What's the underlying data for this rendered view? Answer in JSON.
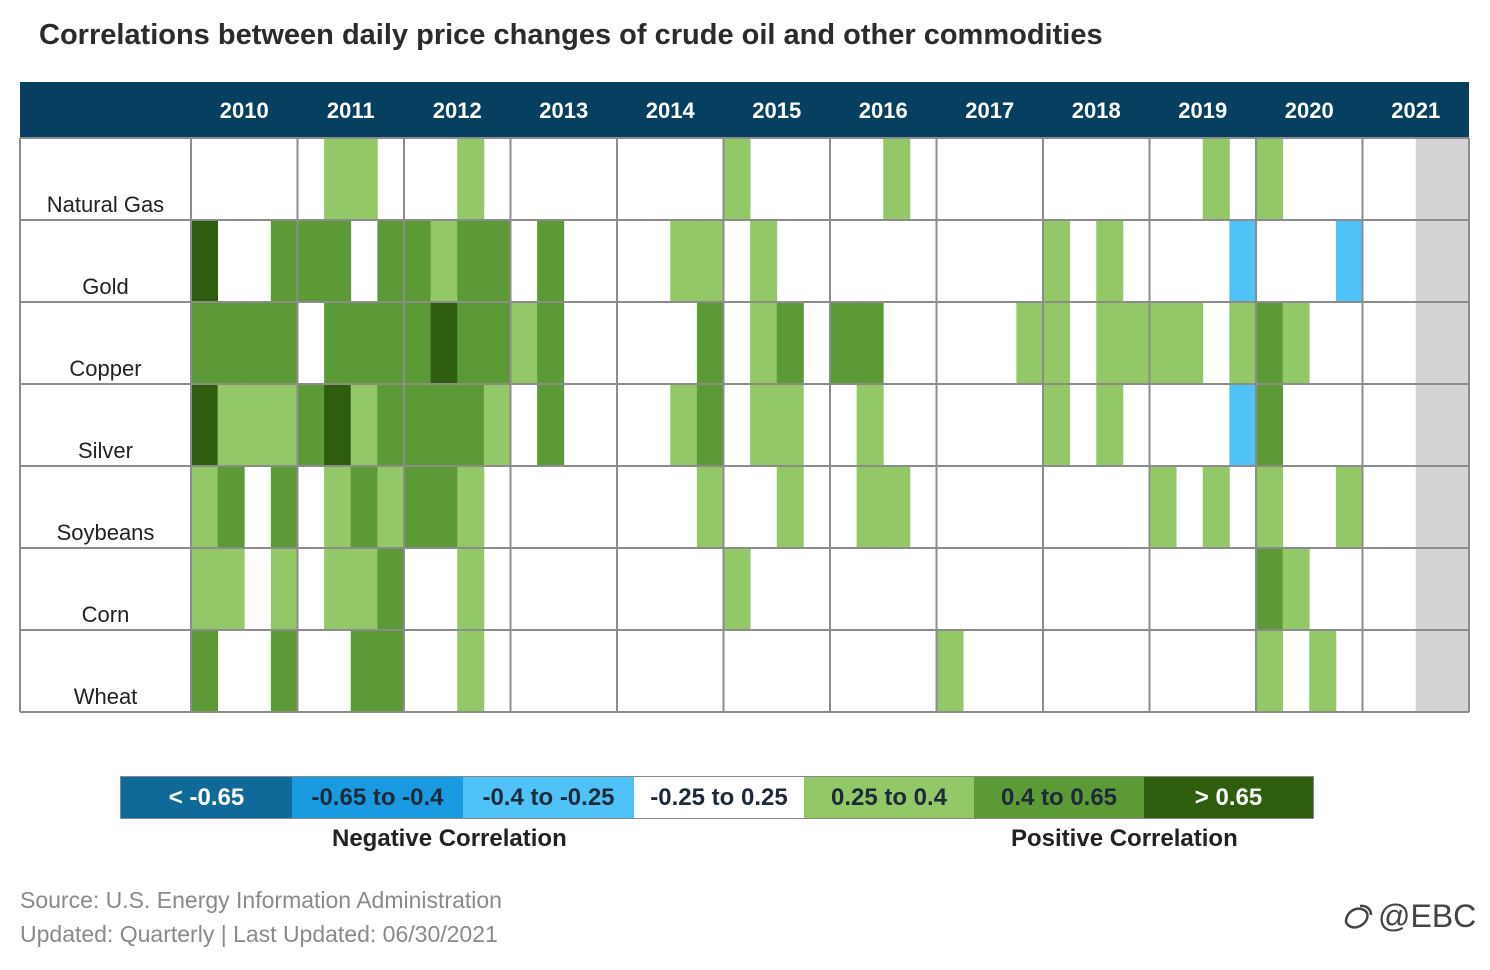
{
  "chart_data": {
    "type": "heatmap",
    "title": "Correlations between daily price changes of crude oil and other commodities",
    "years": [
      "2010",
      "2011",
      "2012",
      "2013",
      "2014",
      "2015",
      "2016",
      "2017",
      "2018",
      "2019",
      "2020",
      "2021"
    ],
    "quarters_per_year": 4,
    "rows": [
      "Natural Gas",
      "Gold",
      "Copper",
      "Silver",
      "Soybeans",
      "Corn",
      "Wheat"
    ],
    "levels": {
      "-3": "< -0.65",
      "-2": "-0.65 to -0.4",
      "-1": "-0.4 to -0.25",
      "0": "-0.25 to 0.25",
      "1": "0.25 to 0.4",
      "2": "0.4 to 0.65",
      "3": "> 0.65"
    },
    "level_colors": {
      "-3": "#0f6a9a",
      "-2": "#1a9ae0",
      "-1": "#4fc3f7",
      "0": "#ffffff",
      "1": "#92c865",
      "2": "#5b9a35",
      "3": "#2f5d0e",
      "na": "#d3d3d3"
    },
    "values": [
      [
        0,
        0,
        0,
        0,
        0,
        1,
        1,
        0,
        0,
        0,
        1,
        0,
        0,
        0,
        0,
        0,
        0,
        0,
        0,
        0,
        1,
        0,
        0,
        0,
        0,
        0,
        1,
        0,
        0,
        0,
        0,
        0,
        0,
        0,
        0,
        0,
        0,
        0,
        1,
        0,
        1,
        0,
        0,
        0,
        0,
        0,
        "na",
        "na"
      ],
      [
        3,
        0,
        0,
        2,
        2,
        2,
        0,
        2,
        2,
        1,
        2,
        2,
        0,
        2,
        0,
        0,
        0,
        0,
        1,
        1,
        0,
        1,
        0,
        0,
        0,
        0,
        0,
        0,
        0,
        0,
        0,
        0,
        1,
        0,
        1,
        0,
        0,
        0,
        0,
        -1,
        0,
        0,
        0,
        -1,
        0,
        0,
        "na",
        "na"
      ],
      [
        2,
        2,
        2,
        2,
        0,
        2,
        2,
        2,
        2,
        3,
        2,
        2,
        1,
        2,
        0,
        0,
        0,
        0,
        0,
        2,
        0,
        1,
        2,
        0,
        2,
        2,
        0,
        0,
        0,
        0,
        0,
        1,
        1,
        0,
        1,
        1,
        1,
        1,
        0,
        1,
        2,
        1,
        0,
        0,
        0,
        0,
        "na",
        "na"
      ],
      [
        3,
        1,
        1,
        1,
        2,
        3,
        1,
        2,
        2,
        2,
        2,
        1,
        0,
        2,
        0,
        0,
        0,
        0,
        1,
        2,
        0,
        1,
        1,
        0,
        0,
        1,
        0,
        0,
        0,
        0,
        0,
        0,
        1,
        0,
        1,
        0,
        0,
        0,
        0,
        -1,
        2,
        0,
        0,
        0,
        0,
        0,
        "na",
        "na"
      ],
      [
        1,
        2,
        0,
        2,
        0,
        1,
        2,
        1,
        2,
        2,
        1,
        0,
        0,
        0,
        0,
        0,
        0,
        0,
        0,
        1,
        0,
        0,
        1,
        0,
        0,
        1,
        1,
        0,
        0,
        0,
        0,
        0,
        0,
        0,
        0,
        0,
        1,
        0,
        1,
        0,
        1,
        0,
        0,
        1,
        0,
        0,
        "na",
        "na"
      ],
      [
        1,
        1,
        0,
        1,
        0,
        1,
        1,
        2,
        0,
        0,
        1,
        0,
        0,
        0,
        0,
        0,
        0,
        0,
        0,
        0,
        1,
        0,
        0,
        0,
        0,
        0,
        0,
        0,
        0,
        0,
        0,
        0,
        0,
        0,
        0,
        0,
        0,
        0,
        0,
        0,
        2,
        1,
        0,
        0,
        0,
        0,
        "na",
        "na"
      ],
      [
        2,
        0,
        0,
        2,
        0,
        0,
        2,
        2,
        0,
        0,
        1,
        0,
        0,
        0,
        0,
        0,
        0,
        0,
        0,
        0,
        0,
        0,
        0,
        0,
        0,
        0,
        0,
        0,
        1,
        0,
        0,
        0,
        0,
        0,
        0,
        0,
        0,
        0,
        0,
        0,
        1,
        0,
        1,
        0,
        0,
        0,
        "na",
        "na"
      ]
    ]
  },
  "legend": {
    "items": [
      {
        "label": "< -0.65",
        "bg": "#0f6a9a",
        "fg": "#ffffff"
      },
      {
        "label": "-0.65 to -0.4",
        "bg": "#1a9ae0",
        "fg": "#1d2a3a"
      },
      {
        "label": "-0.4 to -0.25",
        "bg": "#4fc3f7",
        "fg": "#1d2a3a"
      },
      {
        "label": "-0.25 to 0.25",
        "bg": "#ffffff",
        "fg": "#1d2a3a"
      },
      {
        "label": "0.25 to 0.4",
        "bg": "#92c865",
        "fg": "#1d2a3a"
      },
      {
        "label": "0.4 to 0.65",
        "bg": "#5b9a35",
        "fg": "#1d2a3a"
      },
      {
        "label": "> 0.65",
        "bg": "#2f5d0e",
        "fg": "#ffffff"
      }
    ],
    "negative_caption": "Negative Correlation",
    "positive_caption": "Positive Correlation"
  },
  "footer": {
    "source": "Source: U.S. Energy Information Administration",
    "updated": "Updated: Quarterly | Last Updated: 06/30/2021"
  },
  "header_color": "#063f5f",
  "watermark": "@EBC"
}
